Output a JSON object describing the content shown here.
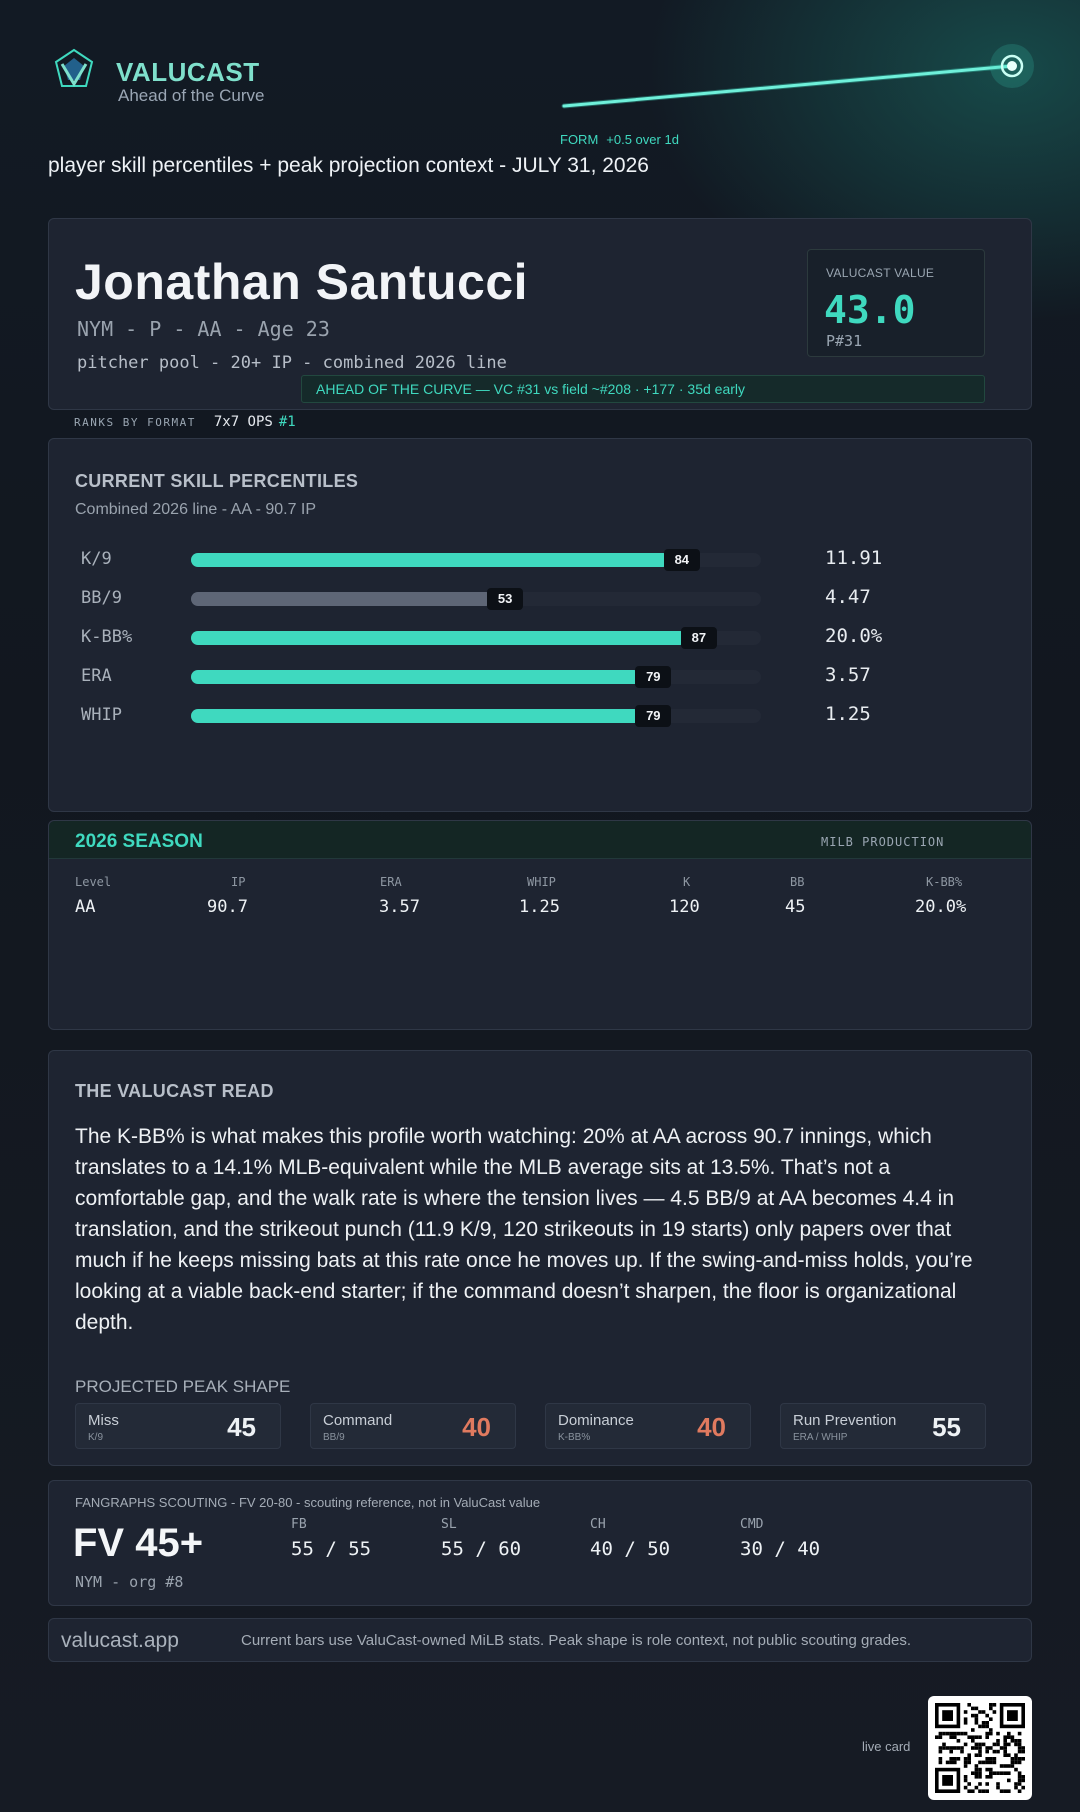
{
  "brand": {
    "name": "VALUCAST",
    "tagline": "Ahead of the Curve",
    "accent": "#3fd9bf"
  },
  "form": {
    "label": "FORM",
    "delta": "+0.5 over 1d"
  },
  "subtitle": "player skill percentiles + peak projection context - JULY 31, 2026",
  "player": {
    "name": "Jonathan Santucci",
    "meta": "NYM - P - AA - Age 23",
    "sub": "pitcher pool - 20+ IP - combined 2026 line",
    "value_label": "VALUCAST VALUE",
    "value": "43.0",
    "rank": "P#31",
    "ahead_banner": "AHEAD OF THE CURVE — VC #31 vs field ~#208 · +177 · 35d early"
  },
  "ranks": {
    "label": "RANKS BY FORMAT",
    "format": "7x7 OPS",
    "rank": "#1"
  },
  "skills": {
    "title": "CURRENT SKILL PERCENTILES",
    "subtitle": "Combined 2026 line - AA - 90.7 IP",
    "rows": [
      {
        "label": "K/9",
        "percentile": 84,
        "value": "11.91",
        "color": "#3fd9bf"
      },
      {
        "label": "BB/9",
        "percentile": 53,
        "value": "4.47",
        "color": "#5e6676"
      },
      {
        "label": "K-BB%",
        "percentile": 87,
        "value": "20.0%",
        "color": "#3fd9bf"
      },
      {
        "label": "ERA",
        "percentile": 79,
        "value": "3.57",
        "color": "#3fd9bf"
      },
      {
        "label": "WHIP",
        "percentile": 79,
        "value": "1.25",
        "color": "#3fd9bf"
      }
    ]
  },
  "season": {
    "title": "2026 SEASON",
    "tag": "MILB PRODUCTION",
    "headers": [
      "Level",
      "IP",
      "ERA",
      "WHIP",
      "K",
      "BB",
      "K-BB%"
    ],
    "row": [
      "AA",
      "90.7",
      "3.57",
      "1.25",
      "120",
      "45",
      "20.0%"
    ]
  },
  "read": {
    "title": "THE VALUCAST READ",
    "text": "The K-BB% is what makes this profile worth watching: 20% at AA across 90.7 innings, which translates to a 14.1% MLB-equivalent while the MLB average sits at 13.5%. That’s not a comfortable gap, and the walk rate is where the tension lives — 4.5 BB/9 at AA becomes 4.4 in translation, and the strikeout punch (11.9 K/9, 120 strikeouts in 19 starts) only papers over that much if he keeps missing bats at this rate once he moves up. If the swing-and-miss holds, you’re looking at a viable back-end starter; if the command doesn’t sharpen, the floor is organizational depth.",
    "peak_title": "PROJECTED PEAK SHAPE",
    "peaks": [
      {
        "name": "Miss",
        "sub": "K/9",
        "value": "45",
        "color": "#eef2f5"
      },
      {
        "name": "Command",
        "sub": "BB/9",
        "value": "40",
        "color": "#e07a5f"
      },
      {
        "name": "Dominance",
        "sub": "K-BB%",
        "value": "40",
        "color": "#e07a5f"
      },
      {
        "name": "Run Prevention",
        "sub": "ERA / WHIP",
        "value": "55",
        "color": "#eef2f5"
      }
    ]
  },
  "scouting": {
    "header": "FANGRAPHS SCOUTING - FV 20-80 - scouting reference, not in ValuCast value",
    "fv": "FV 45+",
    "org": "NYM - org #8",
    "grades": [
      {
        "name": "FB",
        "value": "55 / 55"
      },
      {
        "name": "SL",
        "value": "55 / 60"
      },
      {
        "name": "CH",
        "value": "40 / 50"
      },
      {
        "name": "CMD",
        "value": "30 / 40"
      }
    ]
  },
  "footer": {
    "site": "valucast.app",
    "note": "Current bars use ValuCast-owned MiLB stats. Peak shape is role context, not public scouting grades.",
    "live_label": "live card"
  }
}
